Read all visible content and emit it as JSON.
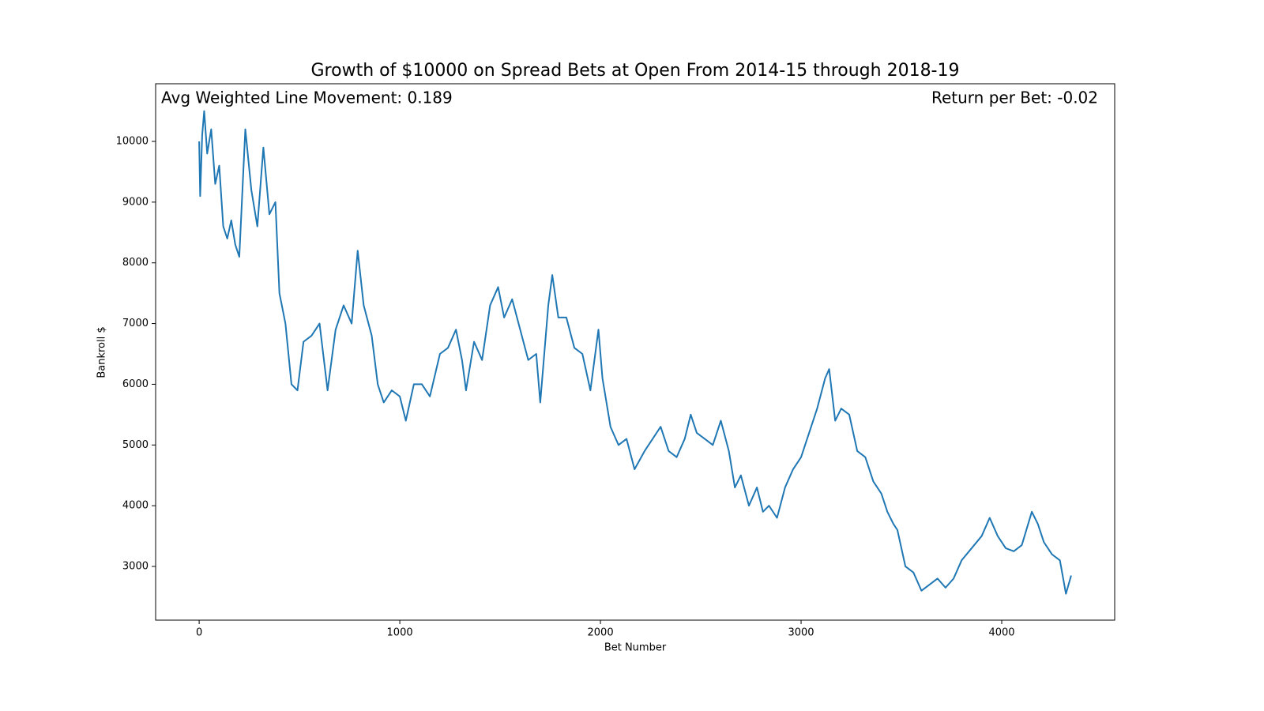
{
  "chart_data": {
    "type": "line",
    "title": "Growth of $10000 on Spread Bets at Open From 2014-15 through 2018-19",
    "annotations": [
      "Avg Weighted Line Movement: 0.189",
      "Return per Bet: -0.02"
    ],
    "xlabel": "Bet Number",
    "ylabel": "Bankroll $",
    "color": "#1f77b4",
    "x": [
      0,
      5,
      15,
      25,
      40,
      60,
      80,
      100,
      120,
      140,
      160,
      180,
      200,
      230,
      260,
      290,
      320,
      350,
      380,
      400,
      430,
      460,
      490,
      520,
      560,
      600,
      640,
      680,
      720,
      760,
      790,
      820,
      860,
      890,
      920,
      960,
      1000,
      1030,
      1070,
      1110,
      1150,
      1200,
      1240,
      1280,
      1310,
      1330,
      1370,
      1410,
      1450,
      1490,
      1520,
      1560,
      1600,
      1640,
      1680,
      1700,
      1740,
      1760,
      1790,
      1830,
      1870,
      1910,
      1950,
      1990,
      2010,
      2050,
      2090,
      2130,
      2170,
      2220,
      2260,
      2300,
      2340,
      2380,
      2420,
      2450,
      2480,
      2520,
      2560,
      2600,
      2640,
      2670,
      2700,
      2740,
      2780,
      2810,
      2840,
      2880,
      2920,
      2960,
      3000,
      3040,
      3080,
      3120,
      3140,
      3170,
      3200,
      3240,
      3280,
      3320,
      3360,
      3400,
      3430,
      3460,
      3480,
      3520,
      3560,
      3600,
      3640,
      3680,
      3720,
      3760,
      3800,
      3850,
      3900,
      3940,
      3980,
      4020,
      4060,
      4100,
      4150,
      4180,
      4210,
      4250,
      4290,
      4320,
      4346
    ],
    "values": [
      10000,
      9100,
      10100,
      10500,
      9800,
      10200,
      9300,
      9600,
      8600,
      8400,
      8700,
      8300,
      8100,
      10200,
      9200,
      8600,
      9900,
      8800,
      9000,
      7500,
      7000,
      6000,
      5900,
      6700,
      6800,
      7000,
      5900,
      6900,
      7300,
      7000,
      8200,
      7300,
      6800,
      6000,
      5700,
      5900,
      5800,
      5400,
      6000,
      6000,
      5800,
      6500,
      6600,
      6900,
      6400,
      5900,
      6700,
      6400,
      7300,
      7600,
      7100,
      7400,
      6900,
      6400,
      6500,
      5700,
      7300,
      7800,
      7100,
      7100,
      6600,
      6500,
      5900,
      6900,
      6100,
      5300,
      5000,
      5100,
      4600,
      4900,
      5100,
      5300,
      4900,
      4800,
      5100,
      5500,
      5200,
      5100,
      5000,
      5400,
      4900,
      4300,
      4500,
      4000,
      4300,
      3900,
      4000,
      3800,
      4300,
      4600,
      4800,
      5200,
      5600,
      6100,
      6250,
      5400,
      5600,
      5500,
      4900,
      4800,
      4400,
      4200,
      3900,
      3700,
      3600,
      3000,
      2900,
      2600,
      2700,
      2800,
      2650,
      2800,
      3100,
      3300,
      3500,
      3800,
      3500,
      3300,
      3250,
      3350,
      3900,
      3700,
      3400,
      3200,
      3100,
      2550,
      2850
    ],
    "xlim": [
      -217,
      4563
    ],
    "ylim": [
      2115,
      10950
    ],
    "xticks": [
      0,
      1000,
      2000,
      3000,
      4000
    ],
    "yticks": [
      3000,
      4000,
      5000,
      6000,
      7000,
      8000,
      9000,
      10000
    ]
  }
}
